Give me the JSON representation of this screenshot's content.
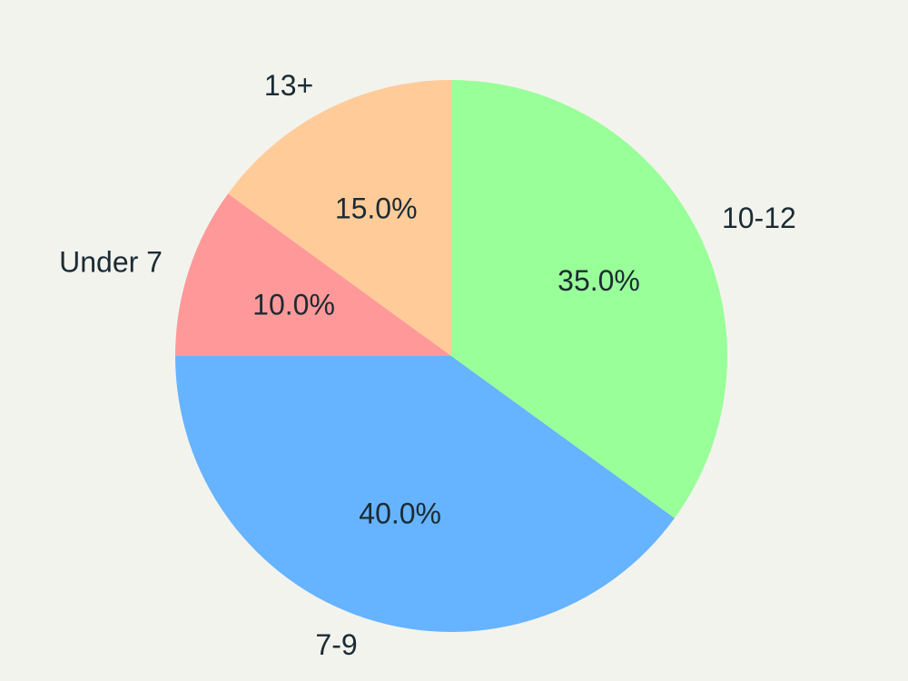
{
  "chart_data": {
    "type": "pie",
    "title": "",
    "legend": "none",
    "start_angle_deg": 90,
    "direction": "counterclockwise",
    "slices": [
      {
        "label": "13+",
        "value": 15.0,
        "pct_text": "15.0%",
        "color": "#ffcc99"
      },
      {
        "label": "Under 7",
        "value": 10.0,
        "pct_text": "10.0%",
        "color": "#ff9999"
      },
      {
        "label": "7-9",
        "value": 40.0,
        "pct_text": "40.0%",
        "color": "#66b3ff"
      },
      {
        "label": "10-12",
        "value": 35.0,
        "pct_text": "35.0%",
        "color": "#99ff99"
      }
    ]
  },
  "colors": {
    "background": "#f3f3ee",
    "text": "#1b2b33"
  }
}
